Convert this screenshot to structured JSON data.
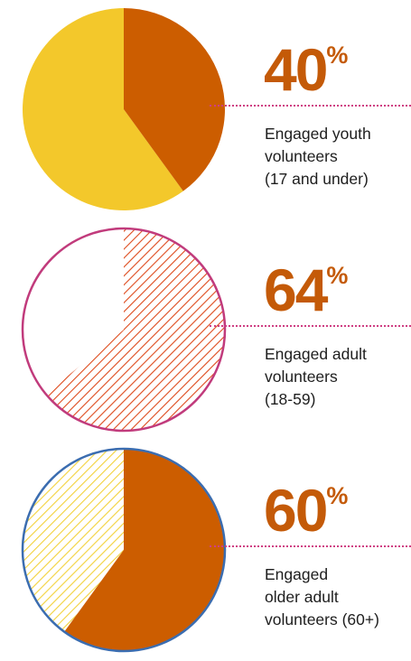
{
  "chart_data": [
    {
      "type": "pie",
      "value_percent": 40,
      "percent_number": "40",
      "percent_sign": "%",
      "caption_lines": [
        "Engaged youth",
        "volunteers",
        "(17 and under)"
      ],
      "colors": {
        "highlight": "#cc5d00",
        "remainder": "#f3c82b",
        "outline": "none",
        "percent_text": "#c45a08",
        "leader_line": "#cf3f83"
      },
      "highlight_fill": "solid",
      "remainder_fill": "solid"
    },
    {
      "type": "pie",
      "value_percent": 64,
      "percent_number": "64",
      "percent_sign": "%",
      "caption_lines": [
        "Engaged adult",
        "volunteers",
        "(18-59)"
      ],
      "colors": {
        "highlight": "#de4a1c",
        "remainder": "#ffffff",
        "outline": "#c13b7c",
        "percent_text": "#c45a08",
        "leader_line": "#cf3f83"
      },
      "highlight_fill": "hatched",
      "remainder_fill": "solid"
    },
    {
      "type": "pie",
      "value_percent": 60,
      "percent_number": "60",
      "percent_sign": "%",
      "caption_lines": [
        "Engaged",
        "older adult",
        "volunteers (60+)"
      ],
      "colors": {
        "highlight": "#cc5d00",
        "remainder": "#f3d23b",
        "outline": "#3b6db0",
        "percent_text": "#c45a08",
        "leader_line": "#cf3f83"
      },
      "highlight_fill": "solid",
      "remainder_fill": "hatched"
    }
  ]
}
